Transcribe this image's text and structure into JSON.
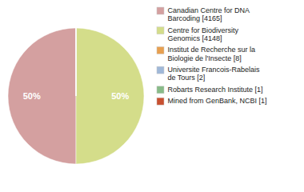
{
  "chart_data": {
    "type": "pie",
    "categories": [
      "Canadian Centre for DNA\nBarcoding [4165]",
      "Centre for Biodiversity\nGenomics [4148]",
      "Institut de Recherche sur la\nBiologie de l'Insecte [8]",
      "Universite Francois-Rabelais\nde Tours [2]",
      "Robarts Research Institute [1]",
      "Mined from GenBank, NCBI [1]"
    ],
    "values": [
      50,
      50,
      0,
      0,
      0,
      0
    ],
    "value_labels": [
      "50%",
      "50%",
      null,
      null,
      null,
      null
    ],
    "data_labels": true,
    "colors": [
      "#d4a0a0",
      "#d4dd8a",
      "#e8a050",
      "#a0b8d8",
      "#88bb88",
      "#c85030"
    ],
    "legend": "right"
  }
}
